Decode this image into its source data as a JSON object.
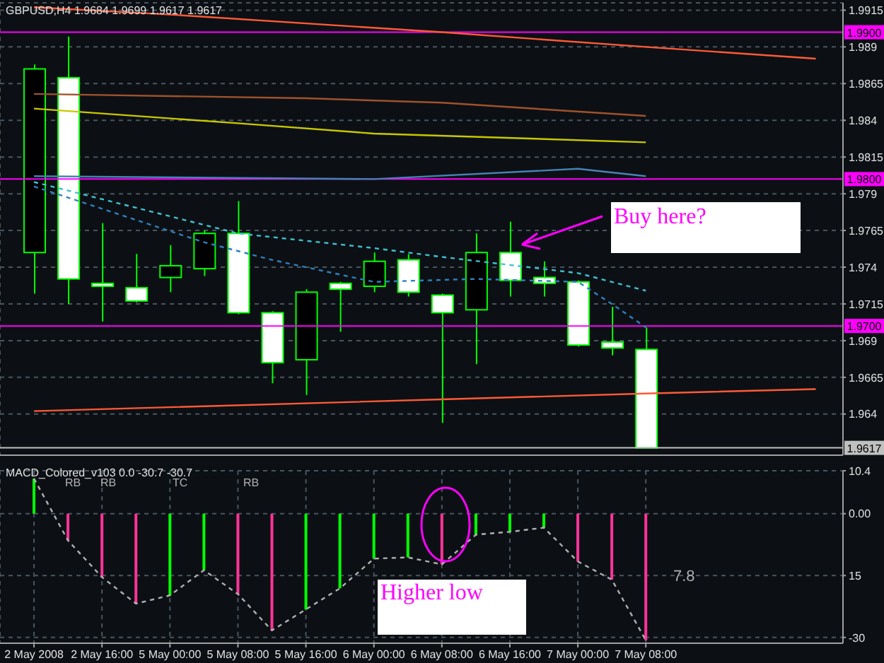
{
  "chart_data": [
    {
      "type": "candlestick",
      "title": "GBPUSD,H4  1.9684 1.9699 1.9617 1.9617",
      "categories": [
        null,
        null,
        null,
        null,
        null,
        null,
        null,
        null,
        null,
        null,
        null,
        null,
        null,
        null,
        null,
        null,
        null,
        null,
        null,
        null,
        null,
        null,
        null,
        null
      ],
      "ohlc": [
        [
          1.975,
          1.9878,
          1.9722,
          1.9875
        ],
        [
          1.9869,
          1.9897,
          1.9715,
          1.9732
        ],
        [
          1.9729,
          1.977,
          1.9703,
          1.9727
        ],
        [
          1.9726,
          1.9749,
          1.9716,
          1.9717
        ],
        [
          1.9733,
          1.9755,
          1.9723,
          1.9741
        ],
        [
          1.9739,
          1.9765,
          1.9734,
          1.9763
        ],
        [
          1.9763,
          1.9785,
          1.9708,
          1.9709
        ],
        [
          1.9709,
          1.971,
          1.9661,
          1.9675
        ],
        [
          1.9677,
          1.9725,
          1.9653,
          1.9723
        ],
        [
          1.9729,
          1.973,
          1.9696,
          1.9725
        ],
        [
          1.9727,
          1.975,
          1.9723,
          1.9744
        ],
        [
          1.9745,
          1.9749,
          1.972,
          1.9723
        ],
        [
          1.9721,
          1.9722,
          1.9634,
          1.9709
        ],
        [
          1.9711,
          1.9763,
          1.9674,
          1.975
        ],
        [
          1.975,
          1.9771,
          1.972,
          1.9731
        ],
        [
          1.9733,
          1.9744,
          1.972,
          1.9729
        ],
        [
          1.973,
          1.9731,
          1.9686,
          1.9687
        ],
        [
          1.9689,
          1.9713,
          1.968,
          1.9685
        ],
        [
          1.9684,
          1.9699,
          1.9617,
          1.9617
        ],
        null,
        null,
        null,
        null,
        null
      ],
      "series": [
        {
          "type": "line",
          "color": "#ff5a36",
          "line_style": "solid",
          "values": [
            1.9917,
            null,
            null,
            null,
            1.9912,
            null,
            null,
            null,
            null,
            null,
            null,
            null,
            1.99,
            null,
            null,
            null,
            null,
            null,
            1.989,
            null,
            null,
            null,
            null,
            1.9882
          ]
        },
        {
          "type": "line",
          "color": "#ff5a36",
          "line_style": "solid",
          "values": [
            1.9642,
            null,
            null,
            null,
            null,
            null,
            null,
            null,
            null,
            null,
            null,
            null,
            1.965,
            null,
            null,
            null,
            null,
            null,
            1.9654,
            null,
            null,
            null,
            null,
            1.9657
          ]
        },
        {
          "type": "line",
          "color": "#a0522d",
          "line_style": "solid",
          "values": [
            1.9858,
            null,
            null,
            null,
            null,
            null,
            null,
            null,
            1.9855,
            null,
            null,
            null,
            1.9852,
            null,
            null,
            null,
            null,
            null,
            1.9843,
            null,
            null,
            null,
            null,
            null
          ]
        },
        {
          "type": "line",
          "color": "#c8c800",
          "line_style": "solid",
          "values": [
            1.9848,
            null,
            null,
            null,
            null,
            null,
            1.9838,
            null,
            null,
            null,
            1.9831,
            null,
            null,
            null,
            null,
            null,
            null,
            null,
            1.9825,
            null,
            null,
            null,
            null,
            null
          ]
        },
        {
          "type": "line",
          "color": "#4682b4",
          "line_style": "solid",
          "values": [
            1.9802,
            null,
            null,
            null,
            null,
            null,
            null,
            null,
            null,
            null,
            1.98,
            null,
            null,
            null,
            null,
            null,
            1.9807,
            null,
            1.9802,
            null,
            null,
            null,
            null,
            null
          ]
        },
        {
          "type": "line",
          "color": "#40c0d0",
          "line_style": "dashed",
          "values": [
            1.9798,
            null,
            null,
            null,
            null,
            null,
            1.9763,
            null,
            null,
            null,
            1.9753,
            null,
            1.9747,
            null,
            null,
            null,
            1.9736,
            null,
            1.9724,
            null,
            null,
            null,
            null,
            null
          ]
        },
        {
          "type": "line",
          "color": "#3080c0",
          "line_style": "dashed",
          "values": [
            1.9795,
            null,
            null,
            null,
            null,
            1.9757,
            null,
            1.9745,
            null,
            null,
            1.973,
            null,
            null,
            1.9732,
            null,
            null,
            1.973,
            1.9715,
            1.9699,
            null,
            null,
            null,
            null,
            null
          ]
        }
      ],
      "ylim": [
        1.9612,
        1.992
      ],
      "yticks": [
        1.9915,
        1.989,
        1.9865,
        1.984,
        1.9815,
        1.979,
        1.9765,
        1.974,
        1.9715,
        1.969,
        1.9665,
        1.964
      ],
      "ref_lines": [
        {
          "axis": "y",
          "value": 1.99,
          "label": "1.9900",
          "color": "#ff00ff"
        },
        {
          "axis": "y",
          "value": 1.98,
          "label": "1.9800",
          "color": "#ff00ff"
        },
        {
          "axis": "y",
          "value": 1.97,
          "label": "1.9700",
          "color": "#ff00ff"
        },
        {
          "axis": "y",
          "value": 1.9617,
          "label": "1.9617",
          "color": "#c0c0c0"
        }
      ],
      "annotations": [
        "Buy here?"
      ],
      "grid": true,
      "tick_labels": "y"
    },
    {
      "type": "bar",
      "title": "MACD_Colored_v103 0.0 -30.7 -30.7",
      "categories": [
        "2 May 2008",
        null,
        "2 May 16:00",
        null,
        "5 May 00:00",
        null,
        "5 May 08:00",
        null,
        "5 May 16:00",
        null,
        "6 May 00:00",
        null,
        "6 May 08:00",
        null,
        "6 May 16:00",
        null,
        "7 May 00:00",
        null,
        "7 May 08:00",
        null,
        null,
        null,
        null,
        null
      ],
      "series": [
        {
          "type": "bar",
          "values": [
            8.5,
            -6.5,
            -15.4,
            -21.8,
            -19.8,
            -13.7,
            -19.5,
            -28.3,
            -23.2,
            -18.1,
            -10.9,
            -10.6,
            -12.3,
            -5.1,
            -4.4,
            -3.4,
            -11.6,
            -16.0,
            -30.7,
            null,
            null,
            null,
            null,
            null
          ],
          "colors": [
            "#00ff00",
            "#ff3399",
            "#ff3399",
            "#ff3399",
            "#00ff00",
            "#00ff00",
            "#ff3399",
            "#ff3399",
            "#00ff00",
            "#00ff00",
            "#00ff00",
            "#00ff00",
            "#ff3399",
            "#00ff00",
            "#00ff00",
            "#00ff00",
            "#ff3399",
            "#ff3399",
            "#ff3399",
            null,
            null,
            null,
            null,
            null
          ]
        },
        {
          "type": "line",
          "color": "#b0b0b0",
          "line_style": "dashed",
          "values": [
            8.5,
            -6.5,
            -15.4,
            -21.8,
            -19.8,
            -13.7,
            -19.5,
            -28.3,
            -23.2,
            -18.1,
            -10.9,
            -10.6,
            -12.3,
            -5.1,
            -4.4,
            -3.4,
            -11.6,
            -16.0,
            -30.7,
            null,
            null,
            null,
            null,
            null
          ]
        }
      ],
      "ylim": [
        -31.4,
        10.4
      ],
      "yticks": [
        10.4,
        {
          "value": 0,
          "label": "0.00"
        },
        {
          "value": -15,
          "label": "15"
        },
        -30
      ],
      "annotations": [
        "RB",
        "RB",
        "TC",
        "RB",
        "7.8",
        "Higher low"
      ],
      "grid": true
    }
  ]
}
